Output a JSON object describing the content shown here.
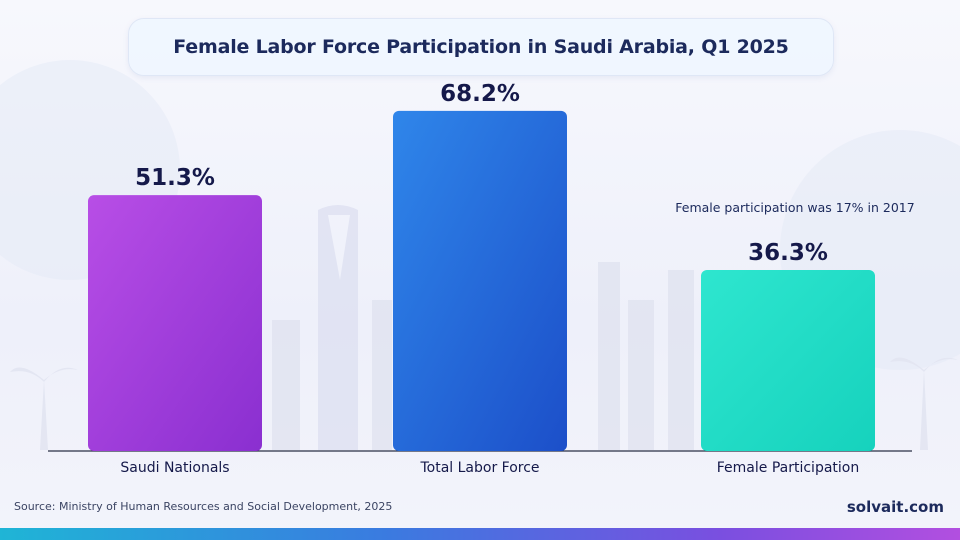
{
  "chart_data": {
    "type": "bar",
    "title": "Female Labor Force Participation in Saudi Arabia, Q1 2025",
    "categories": [
      "Saudi Nationals",
      "Total Labor Force",
      "Female Participation"
    ],
    "values": [
      51.3,
      68.2,
      36.3
    ],
    "value_labels": [
      "51.3%",
      "68.2%",
      "36.3%"
    ],
    "colors": [
      [
        "#b84ee6",
        "#8a2fd0"
      ],
      [
        "#2f86ea",
        "#1c4fc9"
      ],
      [
        "#2ee6cf",
        "#16d2bd"
      ]
    ],
    "annotation": "Female participation was 17% in 2017",
    "ylim": [
      0,
      75
    ],
    "grid": false,
    "legend": "none"
  },
  "footer": {
    "source": "Source: Ministry of Human Resources and Social Development, 2025",
    "brand": "solvait.com"
  }
}
